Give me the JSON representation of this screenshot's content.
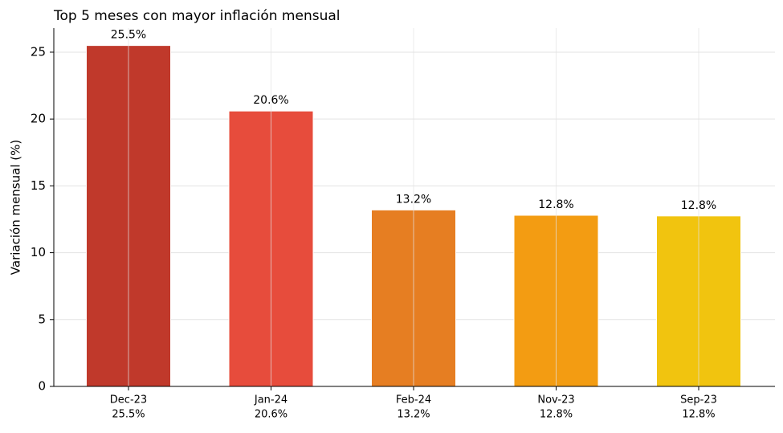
{
  "chart_data": {
    "type": "bar",
    "title": "Top 5 meses con mayor inflación mensual",
    "y_label": "Variación mensual (%)",
    "categories": [
      "Dec-23",
      "Jan-24",
      "Feb-24",
      "Nov-23",
      "Sep-23"
    ],
    "values": [
      25.5,
      20.6,
      13.2,
      12.8,
      12.75
    ],
    "value_labels": [
      "25.5%",
      "20.6%",
      "13.2%",
      "12.8%",
      "12.8%"
    ],
    "colors": [
      "#c0392b",
      "#e74c3c",
      "#e67e22",
      "#f39c12",
      "#f1c40f"
    ],
    "ylim": [
      0,
      26.8
    ],
    "yticks": [
      0,
      5,
      10,
      15,
      20,
      25
    ],
    "grid": true
  }
}
